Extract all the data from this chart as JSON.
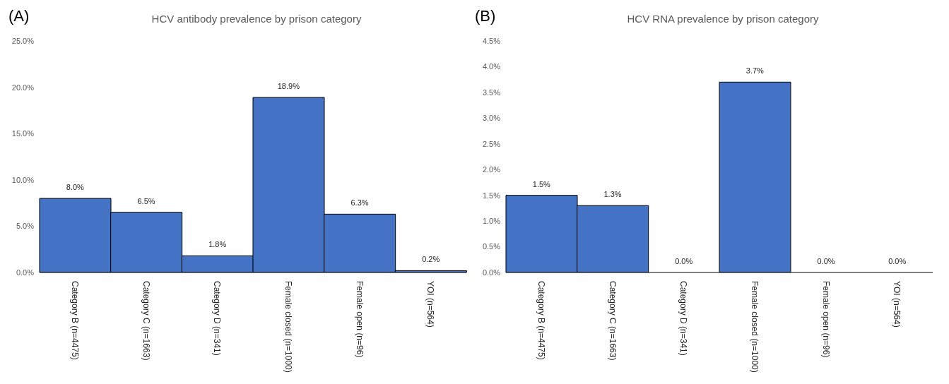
{
  "chart_data": [
    {
      "type": "bar",
      "title": "HCV antibody prevalence by prison category",
      "annotations": [
        "(A)"
      ],
      "categories": [
        "Category B (n=4475)",
        "Category C (n=1663)",
        "Category D (n=341)",
        "Female closed (n=1000)",
        "Female open (n=96)",
        "YOI (n=564)"
      ],
      "values": [
        8.0,
        6.5,
        1.8,
        18.9,
        6.3,
        0.2
      ],
      "color": "#4472c4",
      "value_labels": [
        "8.0%",
        "6.5%",
        "1.8%",
        "18.9%",
        "6.3%",
        "0.2%"
      ],
      "ylim": [
        0,
        25
      ],
      "yticks": [
        {
          "value": 0,
          "label": "0.0%"
        },
        {
          "value": 5,
          "label": "5.0%"
        },
        {
          "value": 10,
          "label": "10.0%"
        },
        {
          "value": 15,
          "label": "15.0%"
        },
        {
          "value": 20,
          "label": "20.0%"
        },
        {
          "value": 25,
          "label": "25.0%"
        }
      ],
      "grid": false
    },
    {
      "type": "bar",
      "title": "HCV RNA prevalence by prison category",
      "annotations": [
        "(B)"
      ],
      "categories": [
        "Category B (n=4475)",
        "Category C (n=1663)",
        "Category D (n=341)",
        "Female closed (n=1000)",
        "Female open (n=96)",
        "YOI (n=564)"
      ],
      "values": [
        1.5,
        1.3,
        0.0,
        3.7,
        0.0,
        0.0
      ],
      "color": "#4472c4",
      "value_labels": [
        "1.5%",
        "1.3%",
        "0.0%",
        "3.7%",
        "0.0%",
        "0.0%"
      ],
      "ylim": [
        0,
        4.5
      ],
      "yticks": [
        {
          "value": 0,
          "label": "0.0%"
        },
        {
          "value": 0.5,
          "label": "0.5%"
        },
        {
          "value": 1,
          "label": "1.0%"
        },
        {
          "value": 1.5,
          "label": "1.5%"
        },
        {
          "value": 2,
          "label": "2.0%"
        },
        {
          "value": 2.5,
          "label": "2.5%"
        },
        {
          "value": 3,
          "label": "3.0%"
        },
        {
          "value": 3.5,
          "label": "3.5%"
        },
        {
          "value": 4,
          "label": "4.0%"
        },
        {
          "value": 4.5,
          "label": "4.5%"
        }
      ],
      "grid": false
    }
  ]
}
